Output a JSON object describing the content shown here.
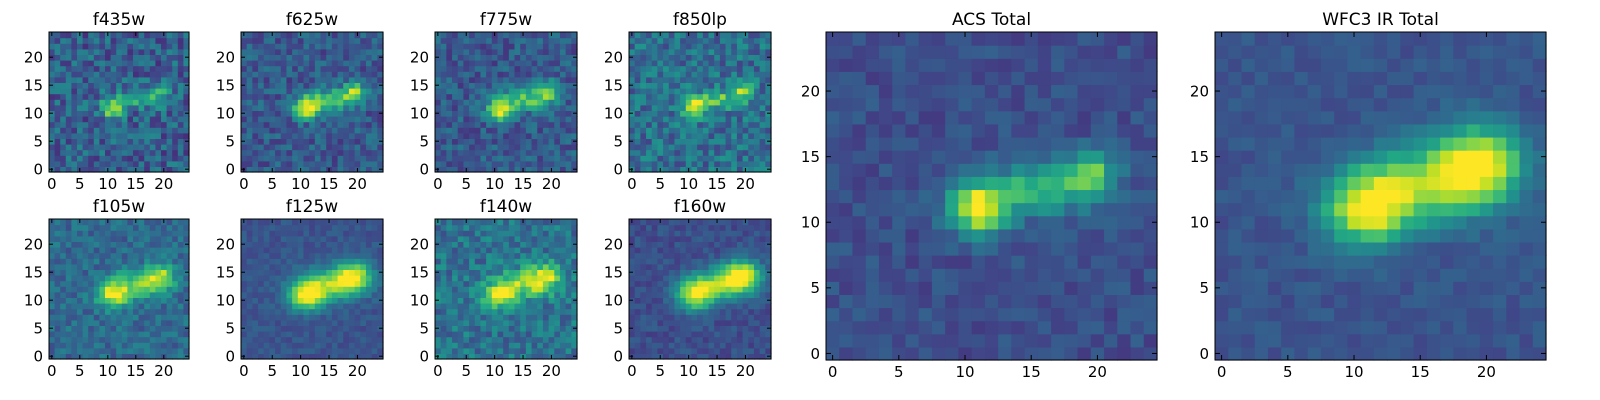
{
  "chart_data": [
    {
      "type": "heatmap",
      "title": "f435w",
      "xlabel": "",
      "ylabel": "",
      "xlim": [
        0,
        25
      ],
      "ylim": [
        0,
        25
      ],
      "xticks": [
        "0",
        "5",
        "10",
        "15",
        "20"
      ],
      "yticks": [
        "0",
        "5",
        "10",
        "15",
        "20"
      ],
      "colormap": "viridis",
      "noise": 0.34,
      "background": 0.3,
      "sources": [
        {
          "x": 11.5,
          "y": 11.5,
          "sx": 1.4,
          "sy": 1.2,
          "amp": 0.65
        },
        {
          "x": 16,
          "y": 13,
          "sx": 3,
          "sy": 1.1,
          "amp": 0.35
        },
        {
          "x": 20,
          "y": 14.5,
          "sx": 1.2,
          "sy": 1.0,
          "amp": 0.4
        }
      ]
    },
    {
      "type": "heatmap",
      "title": "f625w",
      "xlabel": "",
      "ylabel": "",
      "xlim": [
        0,
        25
      ],
      "ylim": [
        0,
        25
      ],
      "xticks": [
        "0",
        "5",
        "10",
        "15",
        "20"
      ],
      "yticks": [
        "0",
        "5",
        "10",
        "15",
        "20"
      ],
      "colormap": "viridis",
      "noise": 0.26,
      "background": 0.28,
      "sources": [
        {
          "x": 11.5,
          "y": 11.5,
          "sx": 1.6,
          "sy": 1.3,
          "amp": 0.7
        },
        {
          "x": 16,
          "y": 13,
          "sx": 3,
          "sy": 1.3,
          "amp": 0.45
        },
        {
          "x": 20,
          "y": 14.5,
          "sx": 1.4,
          "sy": 1.2,
          "amp": 0.5
        }
      ]
    },
    {
      "type": "heatmap",
      "title": "f775w",
      "xlabel": "",
      "ylabel": "",
      "xlim": [
        0,
        25
      ],
      "ylim": [
        0,
        25
      ],
      "xticks": [
        "0",
        "5",
        "10",
        "15",
        "20"
      ],
      "yticks": [
        "0",
        "5",
        "10",
        "15",
        "20"
      ],
      "colormap": "viridis",
      "noise": 0.26,
      "background": 0.28,
      "sources": [
        {
          "x": 11.5,
          "y": 11.0,
          "sx": 1.6,
          "sy": 1.3,
          "amp": 0.7
        },
        {
          "x": 16,
          "y": 13,
          "sx": 3,
          "sy": 1.3,
          "amp": 0.45
        },
        {
          "x": 20,
          "y": 14.5,
          "sx": 1.4,
          "sy": 1.2,
          "amp": 0.5
        }
      ]
    },
    {
      "type": "heatmap",
      "title": "f850lp",
      "xlabel": "",
      "ylabel": "",
      "xlim": [
        0,
        25
      ],
      "ylim": [
        0,
        25
      ],
      "xticks": [
        "0",
        "5",
        "10",
        "15",
        "20"
      ],
      "yticks": [
        "0",
        "5",
        "10",
        "15",
        "20"
      ],
      "colormap": "viridis",
      "noise": 0.32,
      "background": 0.36,
      "sources": [
        {
          "x": 11.5,
          "y": 11.5,
          "sx": 1.5,
          "sy": 1.3,
          "amp": 0.6
        },
        {
          "x": 16,
          "y": 13,
          "sx": 3,
          "sy": 1.2,
          "amp": 0.35
        },
        {
          "x": 20,
          "y": 14.5,
          "sx": 1.3,
          "sy": 1.1,
          "amp": 0.45
        }
      ]
    },
    {
      "type": "heatmap",
      "title": "f105w",
      "xlabel": "",
      "ylabel": "",
      "xlim": [
        0,
        25
      ],
      "ylim": [
        0,
        25
      ],
      "xticks": [
        "0",
        "5",
        "10",
        "15",
        "20"
      ],
      "yticks": [
        "0",
        "5",
        "10",
        "15",
        "20"
      ],
      "colormap": "viridis",
      "noise": 0.22,
      "background": 0.34,
      "sources": [
        {
          "x": 11.5,
          "y": 11.5,
          "sx": 2.0,
          "sy": 1.6,
          "amp": 0.62
        },
        {
          "x": 16,
          "y": 13.5,
          "sx": 3.5,
          "sy": 1.8,
          "amp": 0.4
        },
        {
          "x": 20,
          "y": 15,
          "sx": 1.8,
          "sy": 1.6,
          "amp": 0.45
        }
      ]
    },
    {
      "type": "heatmap",
      "title": "f125w",
      "xlabel": "",
      "ylabel": "",
      "xlim": [
        0,
        25
      ],
      "ylim": [
        0,
        25
      ],
      "xticks": [
        "0",
        "5",
        "10",
        "15",
        "20"
      ],
      "yticks": [
        "0",
        "5",
        "10",
        "15",
        "20"
      ],
      "colormap": "viridis",
      "noise": 0.12,
      "background": 0.26,
      "sources": [
        {
          "x": 11.5,
          "y": 11.5,
          "sx": 2.3,
          "sy": 1.9,
          "amp": 0.7
        },
        {
          "x": 16,
          "y": 13.5,
          "sx": 3.5,
          "sy": 2.0,
          "amp": 0.5
        },
        {
          "x": 20,
          "y": 15,
          "sx": 2.2,
          "sy": 1.9,
          "amp": 0.6
        }
      ]
    },
    {
      "type": "heatmap",
      "title": "f140w",
      "xlabel": "",
      "ylabel": "",
      "xlim": [
        0,
        25
      ],
      "ylim": [
        0,
        25
      ],
      "xticks": [
        "0",
        "5",
        "10",
        "15",
        "20"
      ],
      "yticks": [
        "0",
        "5",
        "10",
        "15",
        "20"
      ],
      "colormap": "viridis",
      "noise": 0.28,
      "background": 0.38,
      "sources": [
        {
          "x": 11.5,
          "y": 11.5,
          "sx": 2.1,
          "sy": 1.7,
          "amp": 0.55
        },
        {
          "x": 16,
          "y": 13.5,
          "sx": 3.5,
          "sy": 1.8,
          "amp": 0.4
        },
        {
          "x": 19.5,
          "y": 15,
          "sx": 1.8,
          "sy": 1.6,
          "amp": 0.5
        }
      ]
    },
    {
      "type": "heatmap",
      "title": "f160w",
      "xlabel": "",
      "ylabel": "",
      "xlim": [
        0,
        25
      ],
      "ylim": [
        0,
        25
      ],
      "xticks": [
        "0",
        "5",
        "10",
        "15",
        "20"
      ],
      "yticks": [
        "0",
        "5",
        "10",
        "15",
        "20"
      ],
      "colormap": "viridis",
      "noise": 0.14,
      "background": 0.24,
      "sources": [
        {
          "x": 11.5,
          "y": 11.5,
          "sx": 2.3,
          "sy": 1.9,
          "amp": 0.65
        },
        {
          "x": 16,
          "y": 13.5,
          "sx": 3.5,
          "sy": 2.0,
          "amp": 0.5
        },
        {
          "x": 20,
          "y": 15,
          "sx": 2.3,
          "sy": 2.0,
          "amp": 0.7
        }
      ]
    },
    {
      "type": "heatmap",
      "title": "ACS Total",
      "xlabel": "",
      "ylabel": "",
      "xlim": [
        0,
        25
      ],
      "ylim": [
        0,
        25
      ],
      "xticks": [
        "0",
        "5",
        "10",
        "15",
        "20"
      ],
      "yticks": [
        "0",
        "5",
        "10",
        "15",
        "20"
      ],
      "colormap": "viridis",
      "noise": 0.14,
      "background": 0.24,
      "sources": [
        {
          "x": 11.5,
          "y": 11.5,
          "sx": 1.5,
          "sy": 1.3,
          "amp": 0.75
        },
        {
          "x": 16,
          "y": 13,
          "sx": 3,
          "sy": 1.3,
          "amp": 0.45
        },
        {
          "x": 20,
          "y": 14.5,
          "sx": 1.3,
          "sy": 1.1,
          "amp": 0.5
        }
      ]
    },
    {
      "type": "heatmap",
      "title": "WFC3 IR Total",
      "xlabel": "",
      "ylabel": "",
      "xlim": [
        0,
        25
      ],
      "ylim": [
        0,
        25
      ],
      "xticks": [
        "0",
        "5",
        "10",
        "15",
        "20"
      ],
      "yticks": [
        "0",
        "5",
        "10",
        "15",
        "20"
      ],
      "colormap": "viridis",
      "noise": 0.1,
      "background": 0.26,
      "sources": [
        {
          "x": 11.5,
          "y": 11.5,
          "sx": 2.3,
          "sy": 1.9,
          "amp": 0.7
        },
        {
          "x": 16,
          "y": 13.5,
          "sx": 3.5,
          "sy": 2.0,
          "amp": 0.5
        },
        {
          "x": 20,
          "y": 15,
          "sx": 2.3,
          "sy": 2.0,
          "amp": 0.65
        }
      ]
    }
  ]
}
